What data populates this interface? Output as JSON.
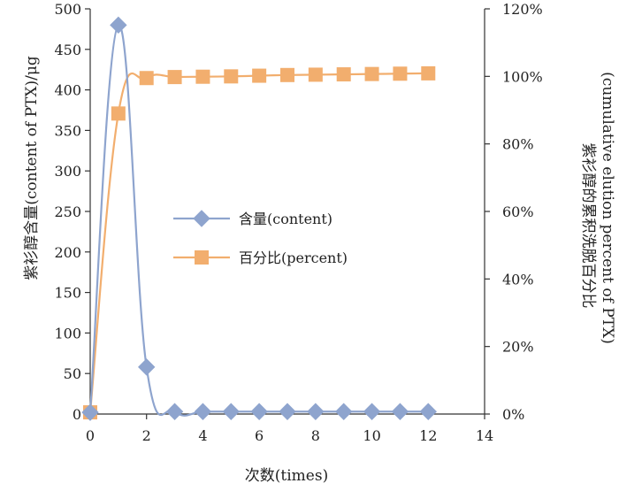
{
  "chart_data": {
    "type": "line",
    "xlabel": "次数(times)",
    "ylabel_left": "紫衫醇含量(content of PTX)/μg",
    "ylabel_right_line1": "紫衫醇的累积洗脱百分比",
    "ylabel_right_line2": "(cumulative elution percent of PTX)",
    "xlim": [
      0,
      14
    ],
    "xticks": [
      "0",
      "2",
      "4",
      "6",
      "8",
      "10",
      "12",
      "14"
    ],
    "ylim_left": [
      0,
      500
    ],
    "yticks_left": [
      "0",
      "50",
      "100",
      "150",
      "200",
      "250",
      "300",
      "350",
      "400",
      "450",
      "500"
    ],
    "ylim_right": [
      0,
      120
    ],
    "yticks_right": [
      "0%",
      "20%",
      "40%",
      "60%",
      "80%",
      "100%",
      "120%"
    ],
    "grid": false,
    "legend_position": "center",
    "series": [
      {
        "name": "含量(content)",
        "axis": "left",
        "marker": "diamond",
        "color": "#8EA4CE",
        "x": [
          0,
          1,
          2,
          3,
          4,
          5,
          6,
          7,
          8,
          9,
          10,
          11,
          12
        ],
        "values": [
          2,
          480,
          58,
          3,
          3,
          3,
          3,
          3,
          3,
          3,
          3,
          3,
          3
        ]
      },
      {
        "name": "百分比(percent)",
        "axis": "right",
        "marker": "square",
        "color": "#F2AE6E",
        "x": [
          0,
          1,
          2,
          3,
          4,
          5,
          6,
          7,
          8,
          9,
          10,
          11,
          12
        ],
        "values": [
          0.5,
          89,
          99.5,
          99.8,
          99.9,
          100,
          100.2,
          100.4,
          100.5,
          100.6,
          100.7,
          100.8,
          100.9
        ]
      }
    ]
  }
}
